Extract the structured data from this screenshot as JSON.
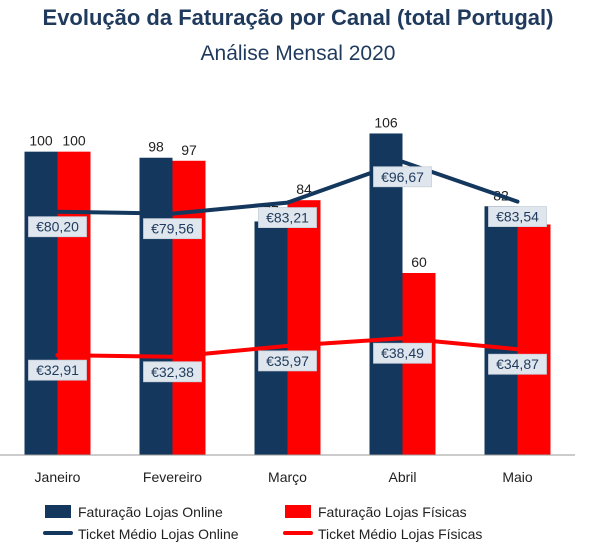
{
  "colors": {
    "online": "#14375e",
    "fisicas": "#ff0000",
    "title": "#1f3a5c",
    "label_box": "#dfe6ee"
  },
  "chart_data": {
    "type": "bar",
    "title": "Evolução da Faturação por Canal (total Portugal)",
    "subtitle": "Análise Mensal 2020",
    "categories": [
      "Janeiro",
      "Fevereiro",
      "Março",
      "Abril",
      "Maio"
    ],
    "ylim": [
      0,
      150
    ],
    "grid": false,
    "legend_position": "bottom",
    "series": [
      {
        "name": "Faturação Lojas Online",
        "kind": "bar",
        "color": "#14375e",
        "values": [
          100,
          98,
          77,
          106,
          82
        ],
        "labels": [
          "100",
          "98",
          "77",
          "106",
          "82"
        ]
      },
      {
        "name": "Faturação Lojas Físicas",
        "kind": "bar",
        "color": "#ff0000",
        "values": [
          100,
          97,
          84,
          60,
          76
        ],
        "labels": [
          "100",
          "97",
          "84",
          "60",
          "76"
        ]
      },
      {
        "name": "Ticket Médio Lojas Online",
        "kind": "line",
        "color": "#14375e",
        "values": [
          80.2,
          79.56,
          83.21,
          96.67,
          83.54
        ],
        "labels": [
          "€80,20",
          "€79,56",
          "€83,21",
          "€96,67",
          "€83,54"
        ]
      },
      {
        "name": "Ticket Médio Lojas Físicas",
        "kind": "line",
        "color": "#ff0000",
        "values": [
          32.91,
          32.38,
          35.97,
          38.49,
          34.87
        ],
        "labels": [
          "€32,91",
          "€32,38",
          "€35,97",
          "€38,49",
          "€34,87"
        ]
      }
    ]
  }
}
